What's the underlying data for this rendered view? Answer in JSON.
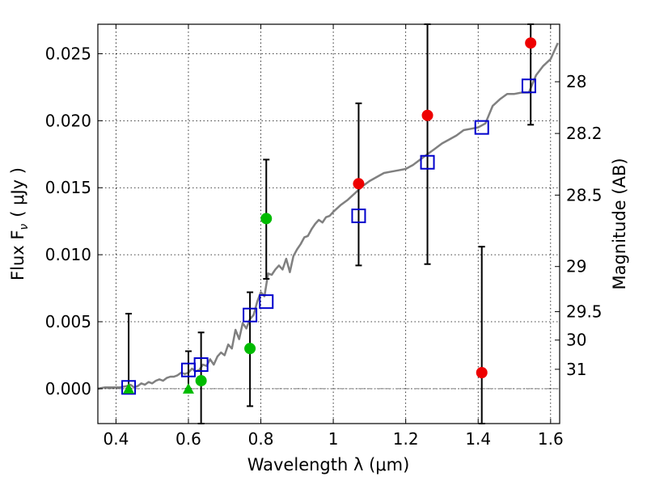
{
  "chart_data": {
    "type": "scatter",
    "title": "",
    "xlabel": "Wavelength  λ (μm)",
    "ylabel": "Flux  F",
    "ylabel_sub": "ν",
    "ylabel_unit": "( μJy )",
    "y2label": "Magnitude (AB)",
    "xlim": [
      0.35,
      1.625
    ],
    "ylim": [
      -0.0026,
      0.0272
    ],
    "xticks": [
      0.4,
      0.6,
      0.8,
      1.0,
      1.2,
      1.4,
      1.6
    ],
    "xtick_labels": [
      "0.4",
      "0.6",
      "0.8",
      "1",
      "1.2",
      "1.4",
      "1.6"
    ],
    "yticks": [
      0.0,
      0.005,
      0.01,
      0.015,
      0.02,
      0.025
    ],
    "ytick_labels": [
      "0.000",
      "0.005",
      "0.010",
      "0.015",
      "0.020",
      "0.025"
    ],
    "y2ticks": [
      {
        "label": "28",
        "flux": 0.02291
      },
      {
        "label": "28.2",
        "flux": 0.01905
      },
      {
        "label": "28.5",
        "flux": 0.01445
      },
      {
        "label": "29",
        "flux": 0.00912
      },
      {
        "label": "29.5",
        "flux": 0.00575
      },
      {
        "label": "30",
        "flux": 0.00363
      },
      {
        "label": "31",
        "flux": 0.00145
      }
    ],
    "grid": true,
    "zero_line": true,
    "model_spectrum": {
      "color": "#808080",
      "x": [
        0.35,
        0.37,
        0.39,
        0.41,
        0.43,
        0.44,
        0.45,
        0.46,
        0.47,
        0.48,
        0.49,
        0.5,
        0.51,
        0.52,
        0.53,
        0.54,
        0.55,
        0.56,
        0.57,
        0.58,
        0.59,
        0.6,
        0.61,
        0.62,
        0.63,
        0.64,
        0.65,
        0.66,
        0.67,
        0.68,
        0.69,
        0.7,
        0.71,
        0.72,
        0.73,
        0.74,
        0.75,
        0.76,
        0.77,
        0.78,
        0.79,
        0.8,
        0.81,
        0.82,
        0.83,
        0.84,
        0.85,
        0.86,
        0.87,
        0.88,
        0.89,
        0.9,
        0.91,
        0.92,
        0.93,
        0.94,
        0.95,
        0.96,
        0.97,
        0.98,
        0.99,
        1.0,
        1.02,
        1.04,
        1.06,
        1.08,
        1.1,
        1.12,
        1.14,
        1.16,
        1.18,
        1.2,
        1.22,
        1.24,
        1.26,
        1.28,
        1.3,
        1.32,
        1.34,
        1.36,
        1.38,
        1.4,
        1.42,
        1.44,
        1.46,
        1.48,
        1.5,
        1.52,
        1.54,
        1.56,
        1.58,
        1.6,
        1.62
      ],
      "y": [
        0.0,
        0.0001,
        0.0001,
        0.0001,
        0.0002,
        0.0003,
        0.0001,
        0.0002,
        0.0004,
        0.0003,
        0.0005,
        0.0004,
        0.0006,
        0.0007,
        0.0006,
        0.0008,
        0.0009,
        0.0009,
        0.001,
        0.0012,
        0.0011,
        0.0012,
        0.0015,
        0.0013,
        0.0014,
        0.0018,
        0.0017,
        0.0022,
        0.0018,
        0.0024,
        0.0027,
        0.0025,
        0.0033,
        0.003,
        0.0044,
        0.0037,
        0.0049,
        0.0045,
        0.0052,
        0.0055,
        0.0065,
        0.0072,
        0.0069,
        0.0086,
        0.0085,
        0.0089,
        0.0092,
        0.0089,
        0.0097,
        0.0087,
        0.0099,
        0.0104,
        0.0108,
        0.0113,
        0.0114,
        0.0119,
        0.0123,
        0.0126,
        0.0124,
        0.0128,
        0.0129,
        0.0132,
        0.0137,
        0.0141,
        0.0146,
        0.0151,
        0.0155,
        0.0158,
        0.0161,
        0.0162,
        0.0163,
        0.0164,
        0.0167,
        0.0171,
        0.0175,
        0.0179,
        0.0183,
        0.0186,
        0.0189,
        0.0193,
        0.0194,
        0.0195,
        0.0198,
        0.0211,
        0.0216,
        0.022,
        0.022,
        0.0221,
        0.0221,
        0.0234,
        0.0241,
        0.0246,
        0.0258
      ]
    },
    "model_photometry": {
      "color": "#0000cc",
      "marker": "square",
      "x": [
        0.435,
        0.6,
        0.635,
        0.77,
        0.815,
        1.07,
        1.26,
        1.41,
        1.54
      ],
      "y": [
        0.0001,
        0.0014,
        0.0018,
        0.0055,
        0.0065,
        0.0129,
        0.0169,
        0.0195,
        0.0226
      ]
    },
    "series": [
      {
        "color": "#00bb00",
        "marker": "circle",
        "x": [
          0.635,
          0.77,
          0.815
        ],
        "y": [
          0.0006,
          0.003,
          0.0127
        ],
        "yerr_low": [
          -0.0026,
          -0.0013,
          0.0082
        ],
        "yerr_high": [
          0.0042,
          0.0072,
          0.0171
        ]
      },
      {
        "color": "#00bb00",
        "marker": "triangle-upper-limit",
        "x": [
          0.435,
          0.6
        ],
        "y": [
          0.0,
          0.0
        ],
        "yerr_low": [
          0.0,
          0.0
        ],
        "yerr_high": [
          0.0056,
          0.0028
        ]
      },
      {
        "color": "#ee0000",
        "marker": "circle",
        "x": [
          1.07,
          1.26,
          1.41,
          1.545
        ],
        "y": [
          0.0153,
          0.0204,
          0.0012,
          0.0258
        ],
        "yerr_low": [
          0.0092,
          0.0093,
          -0.0026,
          0.0197
        ],
        "yerr_high": [
          0.0213,
          0.0272,
          0.0106,
          0.0272
        ]
      }
    ]
  }
}
